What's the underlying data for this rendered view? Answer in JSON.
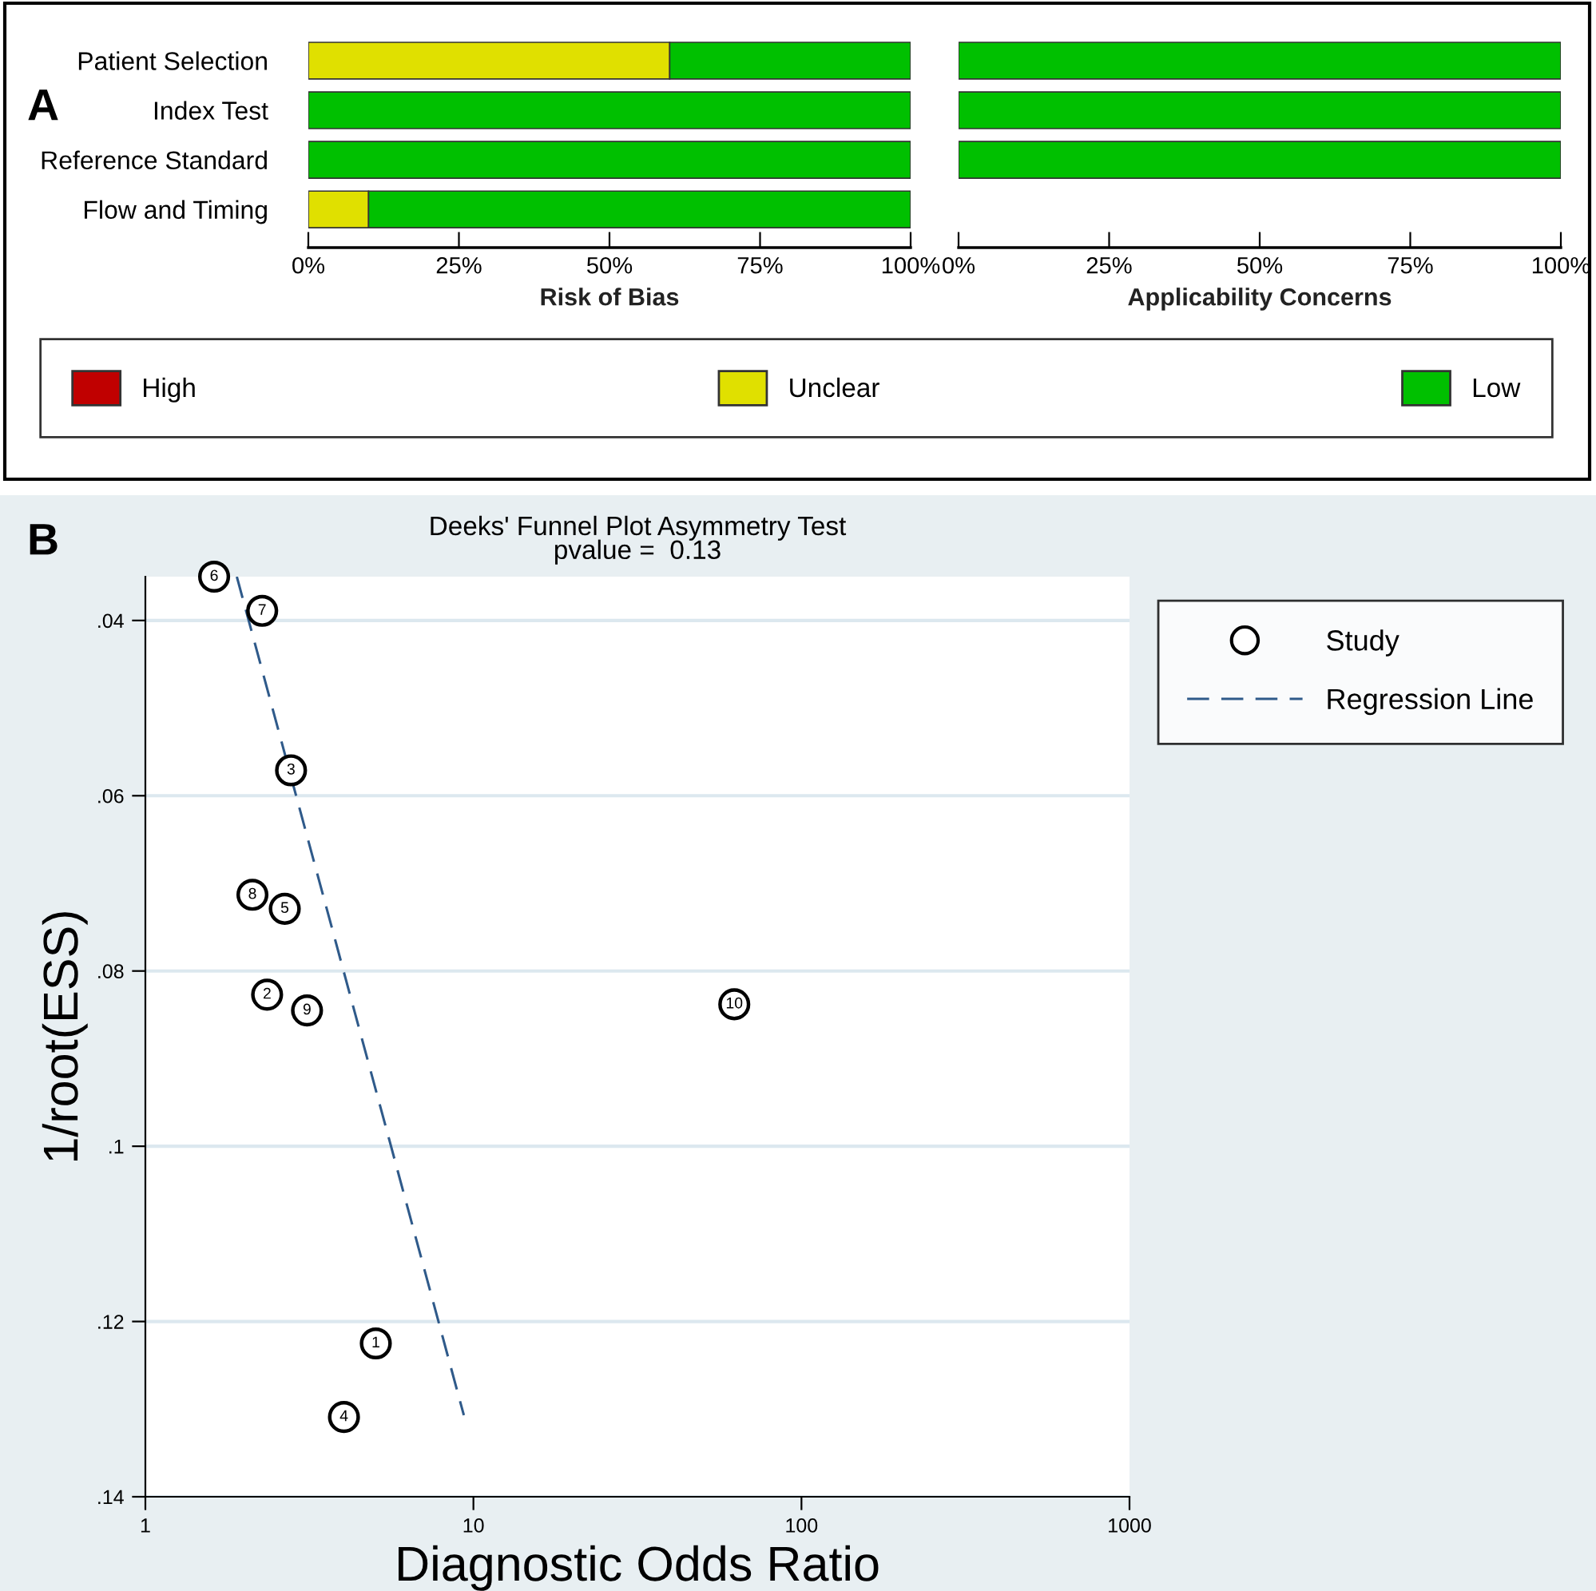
{
  "chart_data": [
    {
      "type": "bar",
      "orientation": "horizontal",
      "stacked": true,
      "xlabel": "Risk of Bias",
      "categories": [
        "Patient Selection",
        "Index Test",
        "Reference Standard",
        "Flow and Timing"
      ],
      "series": [
        {
          "name": "High",
          "color": "#c00000",
          "values": [
            0,
            0,
            0,
            0
          ]
        },
        {
          "name": "Unclear",
          "color": "#e0e000",
          "values": [
            60,
            0,
            0,
            10
          ]
        },
        {
          "name": "Low",
          "color": "#00c000",
          "values": [
            40,
            100,
            100,
            90
          ]
        }
      ],
      "xlim": [
        0,
        100
      ],
      "xticks": [
        {
          "value": 0,
          "label": "0%"
        },
        {
          "value": 25,
          "label": "25%"
        },
        {
          "value": 50,
          "label": "50%"
        },
        {
          "value": 75,
          "label": "75%"
        },
        {
          "value": 100,
          "label": "100%"
        }
      ],
      "legend": "bottom",
      "annotations": [
        "A"
      ]
    },
    {
      "type": "bar",
      "orientation": "horizontal",
      "stacked": true,
      "xlabel": "Applicability Concerns",
      "categories": [
        null,
        null,
        null,
        null
      ],
      "series": [
        {
          "color": "#00c000",
          "values": [
            100,
            100,
            100,
            null
          ]
        }
      ],
      "xlim": [
        0,
        100
      ],
      "xticks": [
        {
          "value": 0,
          "label": "0%"
        },
        {
          "value": 25,
          "label": "25%"
        },
        {
          "value": 50,
          "label": "50%"
        },
        {
          "value": 75,
          "label": "75%"
        },
        {
          "value": 100,
          "label": "100%"
        }
      ],
      "tick_labels": "x"
    },
    {
      "type": "scatter",
      "title": "Deeks' Funnel Plot Asymmetry Test",
      "subtitle": "pvalue =  0.13",
      "xlabel": "Diagnostic Odds Ratio",
      "ylabel": "1/root(ESS)",
      "log": "x",
      "xlim": [
        1,
        1000
      ],
      "xticks": [
        1,
        10,
        100,
        1000
      ],
      "ylim": [
        0.14,
        0.035
      ],
      "yticks": [
        {
          "value": 0.04,
          "label": ".04"
        },
        {
          "value": 0.06,
          "label": ".06"
        },
        {
          "value": 0.08,
          "label": ".08"
        },
        {
          "value": 0.1,
          "label": ".1"
        },
        {
          "value": 0.12,
          "label": ".12"
        },
        {
          "value": 0.14,
          "label": ".14"
        }
      ],
      "grid": "y",
      "legend": "right",
      "series": [
        {
          "name": "Study",
          "type": "scatter",
          "marker": "circle",
          "color": "#000000",
          "x": [
            5.04,
            2.35,
            2.78,
            4.03,
            2.66,
            1.62,
            2.27,
            2.12,
            3.11,
            62.4
          ],
          "values": [
            0.1225,
            0.0827,
            0.0571,
            0.1309,
            0.0729,
            0.035,
            0.0389,
            0.0713,
            0.0845,
            0.0838
          ]
        },
        {
          "name": "Regression Line",
          "type": "line",
          "marker": "none",
          "line_style": "dashed",
          "color": "#2f5a8a",
          "x": [
            1.9,
            9.35
          ],
          "values": [
            0.035,
            0.1307
          ]
        }
      ],
      "annotations": [
        "B",
        {
          "text": "1",
          "x": 5.04,
          "y": 0.1225
        },
        {
          "text": "2",
          "x": 2.35,
          "y": 0.0827
        },
        {
          "text": "3",
          "x": 2.78,
          "y": 0.0571
        },
        {
          "text": "4",
          "x": 4.03,
          "y": 0.1309
        },
        {
          "text": "5",
          "x": 2.66,
          "y": 0.0729
        },
        {
          "text": "6",
          "x": 1.62,
          "y": 0.035
        },
        {
          "text": "7",
          "x": 2.27,
          "y": 0.0389
        },
        {
          "text": "8",
          "x": 2.12,
          "y": 0.0713
        },
        {
          "text": "9",
          "x": 3.11,
          "y": 0.0845
        },
        {
          "text": "10",
          "x": 62.4,
          "y": 0.0838
        }
      ]
    }
  ]
}
